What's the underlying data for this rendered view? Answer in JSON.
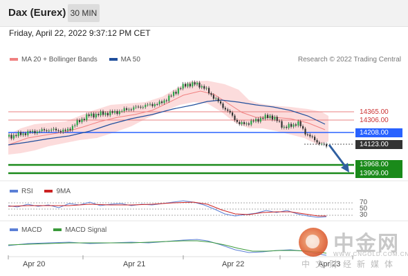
{
  "header": {
    "title": "Dax (Eurex)",
    "timeframe": "30 MIN"
  },
  "timestamp": "Friday, April 22, 2022 9:37:12 PM CET",
  "main_legend": [
    {
      "label": "MA 20 + Bollinger Bands",
      "color": "#f08080"
    },
    {
      "label": "MA 50",
      "color": "#1f4e9c"
    }
  ],
  "credit": "Research © 2022 Trading Central",
  "price_levels": [
    {
      "label": "14365.00",
      "style": "plain",
      "color": "#e88080"
    },
    {
      "label": "14306.00",
      "style": "plain",
      "color": "#e88080"
    },
    {
      "label": "14208.00",
      "style": "blue",
      "color": "#2962ff"
    },
    {
      "label": "14123.00",
      "style": "dark",
      "color": "#333333"
    },
    {
      "label": "13968.00",
      "style": "green",
      "color": "#1a8a1a"
    },
    {
      "label": "13909.00",
      "style": "green",
      "color": "#1a8a1a"
    }
  ],
  "rsi": {
    "legend": [
      {
        "label": "RSI",
        "color": "#5b7fd6"
      },
      {
        "label": "9MA",
        "color": "#cc2222"
      }
    ],
    "levels": [
      "70",
      "50",
      "30"
    ]
  },
  "macd": {
    "legend": [
      {
        "label": "MACD",
        "color": "#5b7fd6"
      },
      {
        "label": "MACD Signal",
        "color": "#3a9a3a"
      }
    ]
  },
  "x_axis": [
    "Apr 20",
    "Apr 21",
    "Apr 22",
    "Apr 23"
  ],
  "watermark": {
    "big": "中金网",
    "url": "WWW.CNGOLD.COM.CN",
    "cn": "中文财经新媒体"
  }
}
